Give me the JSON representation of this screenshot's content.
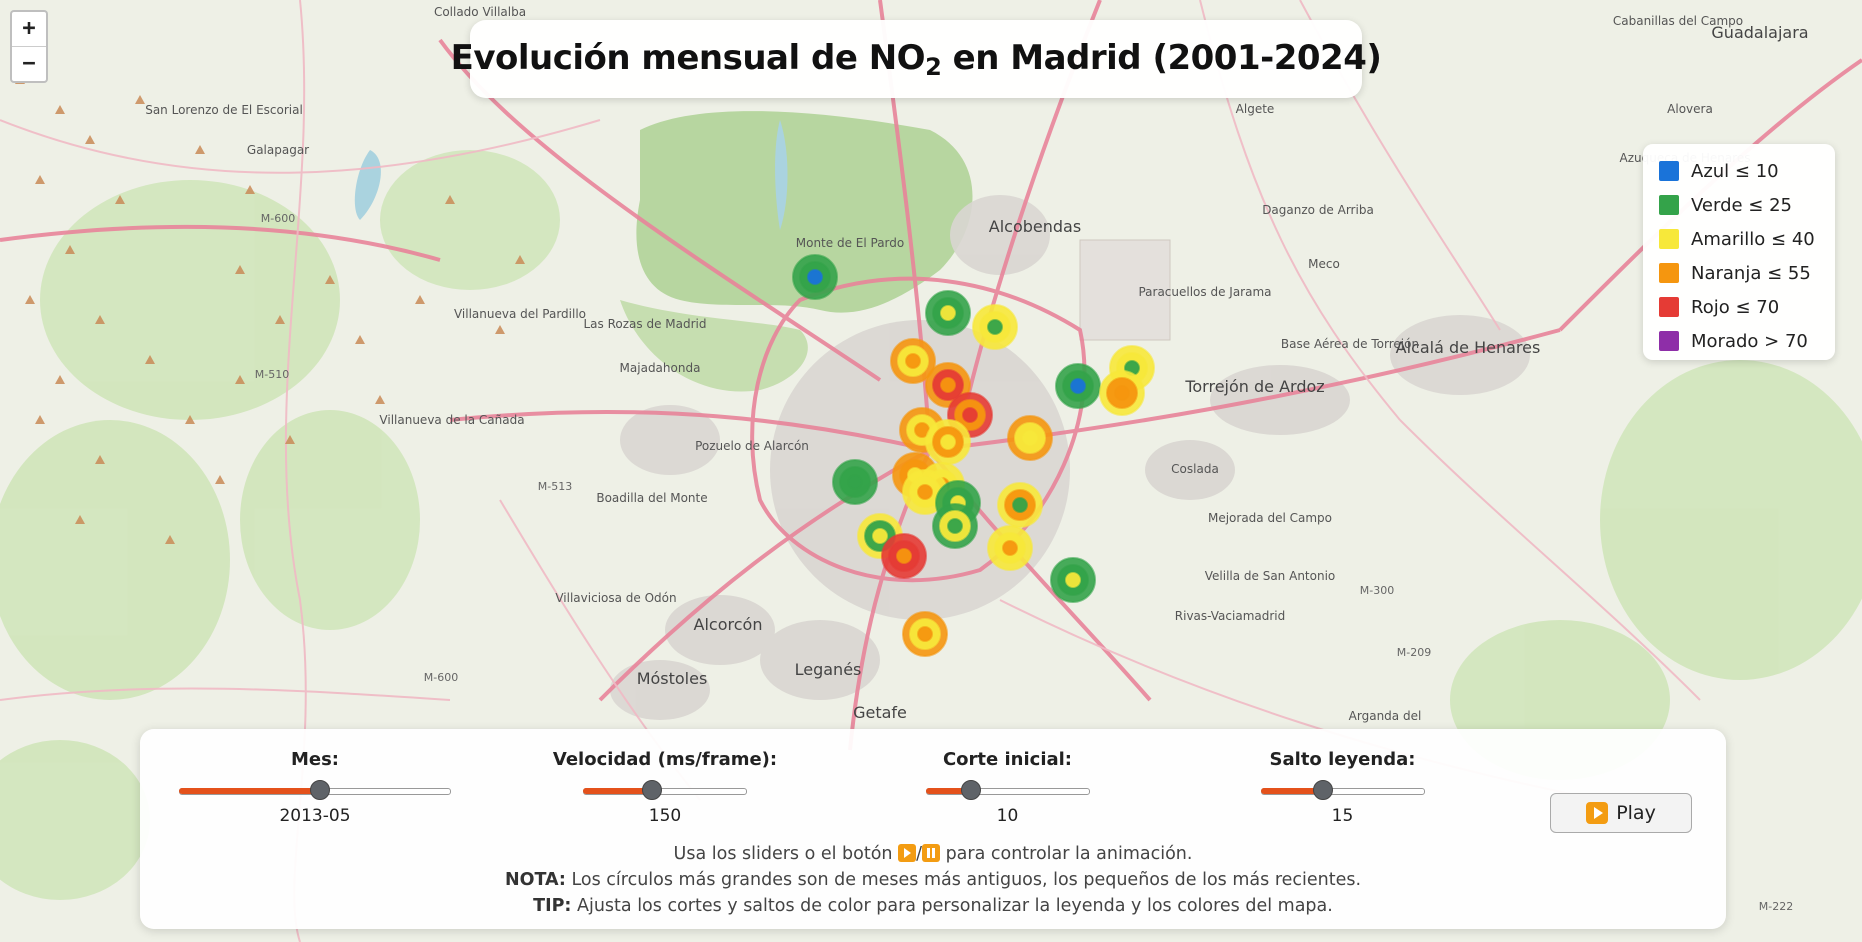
{
  "title": {
    "prefix": "Evolución mensual de NO",
    "sub": "2",
    "suffix": " en Madrid (2001-2024)"
  },
  "zoom": {
    "in": "+",
    "out": "−"
  },
  "legend": [
    {
      "label": "Azul ≤ 10",
      "color": "#1a73d9"
    },
    {
      "label": "Verde ≤ 25",
      "color": "#34a34a"
    },
    {
      "label": "Amarillo ≤ 40",
      "color": "#f7e83a"
    },
    {
      "label": "Naranja ≤ 55",
      "color": "#f5960f"
    },
    {
      "label": "Rojo ≤ 70",
      "color": "#e53b35"
    },
    {
      "label": "Morado > 70",
      "color": "#8e2ea8"
    }
  ],
  "controls": {
    "month": {
      "label": "Mes:",
      "value": "2013-05",
      "fraction": 0.52
    },
    "speed": {
      "label": "Velocidad (ms/frame):",
      "value": "150",
      "fraction": 0.42
    },
    "cut": {
      "label": "Corte inicial:",
      "value": "10",
      "fraction": 0.28
    },
    "step": {
      "label": "Salto leyenda:",
      "value": "15",
      "fraction": 0.38
    },
    "play_label": "Play"
  },
  "notes": {
    "line1_a": "Usa los sliders o el botón ",
    "line1_sep": "/",
    "line1_b": " para controlar la animación.",
    "line2_bold": "NOTA:",
    "line2": " Los círculos más grandes son de meses más antiguos, los pequeños de los más recientes.",
    "line3_bold": "TIP:",
    "line3": " Ajusta los cortes y saltos de color para personalizar la leyenda y los colores del mapa."
  },
  "map_labels": {
    "big": [
      "Alcobendas",
      "Torrejón de Ardoz",
      "Alcalá de Henares",
      "Alcorcón",
      "Leganés",
      "Getafe",
      "Móstoles",
      "Guadalajara"
    ],
    "medium": [
      "Collado Villalba",
      "San Lorenzo de El Escorial",
      "Galapagar",
      "Villanueva del Pardillo",
      "Las Rozas de Madrid",
      "Majadahonda",
      "Villanueva de la Cañada",
      "Pozuelo de Alarcón",
      "Boadilla del Monte",
      "Villaviciosa de Odón",
      "Paracuellos de Jarama",
      "Coslada",
      "Mejorada del Campo",
      "Velilla de San Antonio",
      "Rivas-Vaciamadrid",
      "Arganda del",
      "Algete",
      "Daganzo de Arriba",
      "Meco",
      "Alovera",
      "Cabanillas del Campo",
      "Azuqueca de Henares",
      "Monte de El Pardo",
      "Base Aérea de Torrejón"
    ],
    "roads": [
      "M-600",
      "M-510",
      "M-513",
      "M-600",
      "M-300",
      "M-209",
      "M-222"
    ]
  }
}
